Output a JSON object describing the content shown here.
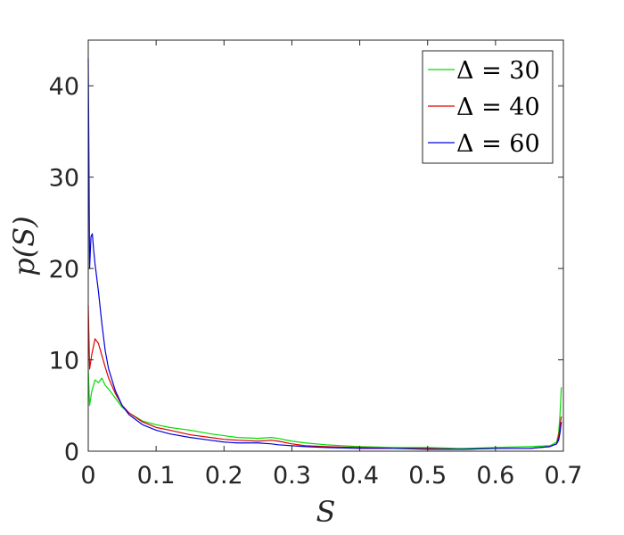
{
  "chart_data": {
    "type": "line",
    "title": "",
    "xlabel": "S",
    "ylabel": "p(S)",
    "xlim": [
      0,
      0.7
    ],
    "ylim": [
      0,
      45
    ],
    "xticks": [
      "0",
      "0.1",
      "0.2",
      "0.3",
      "0.4",
      "0.5",
      "0.6",
      "0.7"
    ],
    "yticks": [
      "0",
      "10",
      "20",
      "30",
      "40"
    ],
    "grid": false,
    "legend_position": "top-right",
    "series": [
      {
        "name": "Δ = 30",
        "color": "#00dd00",
        "x": [
          0,
          0.002,
          0.005,
          0.01,
          0.015,
          0.02,
          0.025,
          0.03,
          0.04,
          0.05,
          0.06,
          0.08,
          0.1,
          0.12,
          0.15,
          0.18,
          0.2,
          0.22,
          0.25,
          0.27,
          0.28,
          0.3,
          0.32,
          0.35,
          0.4,
          0.45,
          0.5,
          0.55,
          0.6,
          0.65,
          0.68,
          0.69,
          0.693,
          0.695,
          0.697
        ],
        "y": [
          9.0,
          5.0,
          6.5,
          7.8,
          7.5,
          8.0,
          7.2,
          6.8,
          5.8,
          4.8,
          4.2,
          3.3,
          2.9,
          2.6,
          2.3,
          1.9,
          1.7,
          1.5,
          1.4,
          1.5,
          1.4,
          1.1,
          0.9,
          0.7,
          0.5,
          0.4,
          0.4,
          0.3,
          0.4,
          0.5,
          0.6,
          1.0,
          2.0,
          4.0,
          7.0
        ]
      },
      {
        "name": "Δ = 40",
        "color": "#dd0000",
        "x": [
          0,
          0.002,
          0.005,
          0.01,
          0.015,
          0.02,
          0.025,
          0.03,
          0.04,
          0.05,
          0.06,
          0.08,
          0.1,
          0.12,
          0.15,
          0.18,
          0.2,
          0.22,
          0.25,
          0.27,
          0.28,
          0.3,
          0.32,
          0.35,
          0.4,
          0.45,
          0.5,
          0.55,
          0.6,
          0.65,
          0.68,
          0.69,
          0.693,
          0.695,
          0.697
        ],
        "y": [
          16.0,
          9.0,
          10.5,
          12.3,
          11.8,
          10.5,
          9.2,
          8.0,
          6.3,
          5.0,
          4.2,
          3.2,
          2.6,
          2.3,
          1.8,
          1.5,
          1.3,
          1.2,
          1.1,
          1.2,
          1.1,
          0.8,
          0.6,
          0.5,
          0.4,
          0.3,
          0.3,
          0.2,
          0.3,
          0.3,
          0.5,
          0.8,
          1.6,
          2.8,
          3.8
        ]
      },
      {
        "name": "Δ = 60",
        "color": "#0000dd",
        "x": [
          0,
          0.001,
          0.002,
          0.004,
          0.006,
          0.008,
          0.01,
          0.015,
          0.02,
          0.025,
          0.03,
          0.04,
          0.05,
          0.06,
          0.08,
          0.1,
          0.12,
          0.15,
          0.18,
          0.2,
          0.22,
          0.25,
          0.27,
          0.28,
          0.3,
          0.32,
          0.35,
          0.4,
          0.45,
          0.5,
          0.55,
          0.6,
          0.65,
          0.68,
          0.69,
          0.693,
          0.695,
          0.697
        ],
        "y": [
          43.0,
          32.0,
          20.0,
          23.5,
          23.8,
          22.0,
          20.5,
          17.5,
          14.0,
          11.0,
          9.0,
          6.6,
          5.0,
          4.0,
          2.9,
          2.3,
          1.9,
          1.5,
          1.2,
          1.0,
          0.9,
          0.9,
          0.8,
          0.7,
          0.6,
          0.5,
          0.4,
          0.3,
          0.3,
          0.2,
          0.2,
          0.3,
          0.3,
          0.5,
          0.8,
          1.2,
          2.0,
          3.2
        ]
      }
    ]
  }
}
